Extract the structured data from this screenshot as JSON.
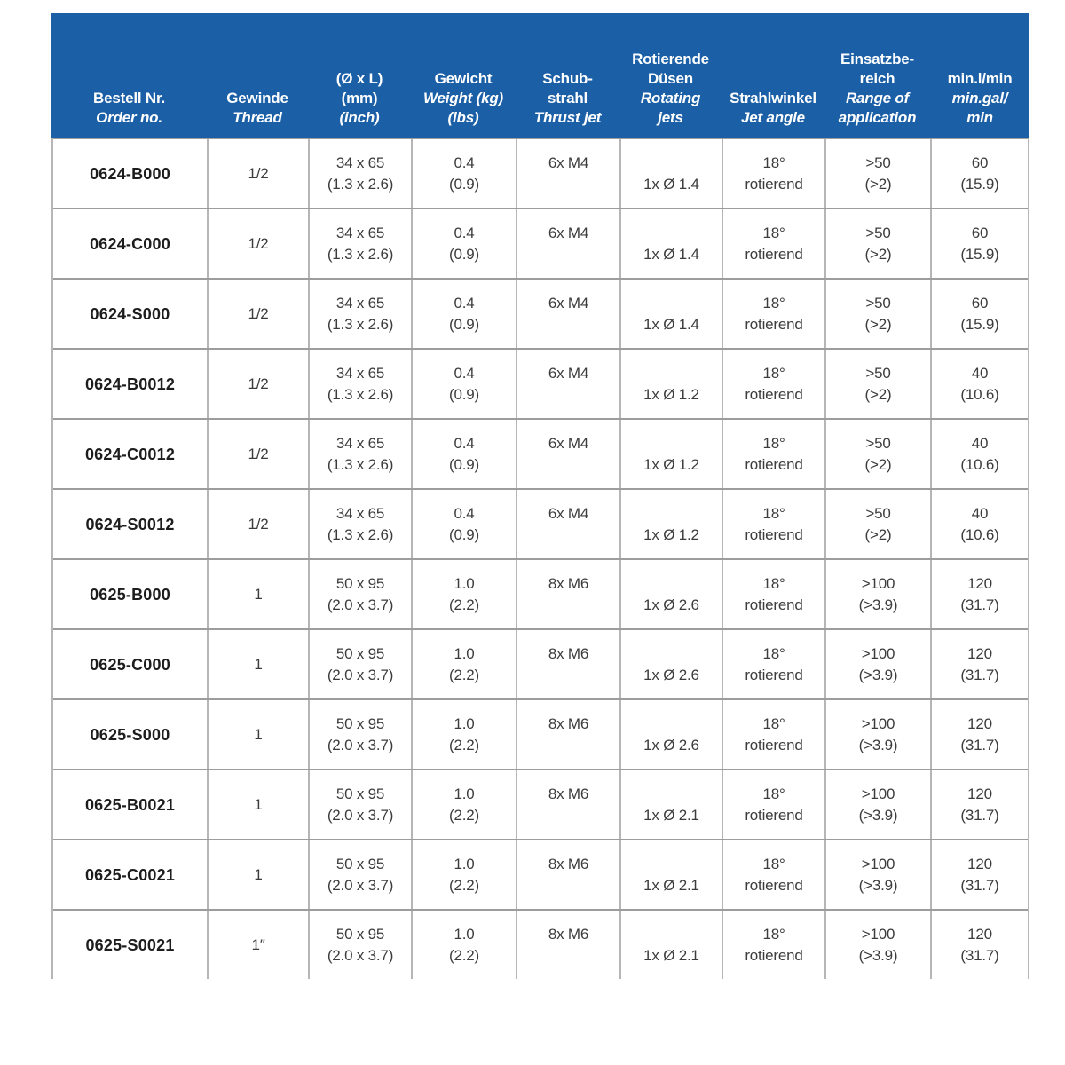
{
  "page": {
    "background": "#ffffff"
  },
  "colors": {
    "header_background": "#1b5fa6",
    "header_text": "#ffffff",
    "row_divider": "#9d9d9d",
    "column_divider": "#b6b6b6",
    "body_text": "#3c3c3c",
    "order_no_text": "#1d1d1d"
  },
  "table": {
    "header": {
      "columns": [
        {
          "id": "order_no",
          "lines": [
            "Bestell Nr.",
            "Order no."
          ]
        },
        {
          "id": "thread",
          "lines": [
            "Gewinde",
            "Thread"
          ]
        },
        {
          "id": "dimensions",
          "lines": [
            "(Ø x L)",
            "(mm)",
            "(inch)"
          ]
        },
        {
          "id": "weight",
          "lines": [
            "Gewicht",
            "Weight (kg)",
            "(lbs)"
          ]
        },
        {
          "id": "thrust_jet",
          "lines": [
            "Schub-",
            "strahl",
            "Thrust jet"
          ]
        },
        {
          "id": "rotating_jets",
          "lines": [
            "Rotierende",
            "Düsen",
            "Rotating",
            "jets"
          ]
        },
        {
          "id": "jet_angle",
          "lines": [
            "Strahlwinkel",
            "Jet angle"
          ]
        },
        {
          "id": "range",
          "lines": [
            "Einsatzbe-",
            "reich",
            "Range of",
            "application"
          ]
        },
        {
          "id": "min_flow",
          "lines": [
            "min.l/min",
            "min.gal/",
            "min"
          ]
        }
      ]
    },
    "rows": [
      {
        "order_no": "0624-B000",
        "thread": "1/2",
        "dims_mm": "34 x 65",
        "dims_inch": "(1.3 x 2.6)",
        "weight_kg": "0.4",
        "weight_lbs": "(0.9)",
        "thrust_jet": "6x M4",
        "rotating_jets": "1x Ø 1.4",
        "jet_angle_1": "18°",
        "jet_angle_2": "rotierend",
        "range_1": ">50",
        "range_2": "(>2)",
        "flow_1": "60",
        "flow_2": "(15.9)"
      },
      {
        "order_no": "0624-C000",
        "thread": "1/2",
        "dims_mm": "34 x 65",
        "dims_inch": "(1.3 x 2.6)",
        "weight_kg": "0.4",
        "weight_lbs": "(0.9)",
        "thrust_jet": "6x M4",
        "rotating_jets": "1x Ø 1.4",
        "jet_angle_1": "18°",
        "jet_angle_2": "rotierend",
        "range_1": ">50",
        "range_2": "(>2)",
        "flow_1": "60",
        "flow_2": "(15.9)"
      },
      {
        "order_no": "0624-S000",
        "thread": "1/2",
        "dims_mm": "34 x 65",
        "dims_inch": "(1.3 x 2.6)",
        "weight_kg": "0.4",
        "weight_lbs": "(0.9)",
        "thrust_jet": "6x M4",
        "rotating_jets": "1x Ø 1.4",
        "jet_angle_1": "18°",
        "jet_angle_2": "rotierend",
        "range_1": ">50",
        "range_2": "(>2)",
        "flow_1": "60",
        "flow_2": "(15.9)"
      },
      {
        "order_no": "0624-B0012",
        "thread": "1/2",
        "dims_mm": "34 x 65",
        "dims_inch": "(1.3 x 2.6)",
        "weight_kg": "0.4",
        "weight_lbs": "(0.9)",
        "thrust_jet": "6x M4",
        "rotating_jets": "1x Ø 1.2",
        "jet_angle_1": "18°",
        "jet_angle_2": "rotierend",
        "range_1": ">50",
        "range_2": "(>2)",
        "flow_1": "40",
        "flow_2": "(10.6)"
      },
      {
        "order_no": "0624-C0012",
        "thread": "1/2",
        "dims_mm": "34 x 65",
        "dims_inch": "(1.3 x 2.6)",
        "weight_kg": "0.4",
        "weight_lbs": "(0.9)",
        "thrust_jet": "6x M4",
        "rotating_jets": "1x Ø 1.2",
        "jet_angle_1": "18°",
        "jet_angle_2": "rotierend",
        "range_1": ">50",
        "range_2": "(>2)",
        "flow_1": "40",
        "flow_2": "(10.6)"
      },
      {
        "order_no": "0624-S0012",
        "thread": "1/2",
        "dims_mm": "34 x 65",
        "dims_inch": "(1.3 x 2.6)",
        "weight_kg": "0.4",
        "weight_lbs": "(0.9)",
        "thrust_jet": "6x M4",
        "rotating_jets": "1x Ø 1.2",
        "jet_angle_1": "18°",
        "jet_angle_2": "rotierend",
        "range_1": ">50",
        "range_2": "(>2)",
        "flow_1": "40",
        "flow_2": "(10.6)"
      },
      {
        "order_no": "0625-B000",
        "thread": "1",
        "dims_mm": "50 x 95",
        "dims_inch": "(2.0 x 3.7)",
        "weight_kg": "1.0",
        "weight_lbs": "(2.2)",
        "thrust_jet": "8x M6",
        "rotating_jets": "1x Ø 2.6",
        "jet_angle_1": "18°",
        "jet_angle_2": "rotierend",
        "range_1": ">100",
        "range_2": "(>3.9)",
        "flow_1": "120",
        "flow_2": "(31.7)"
      },
      {
        "order_no": "0625-C000",
        "thread": "1",
        "dims_mm": "50 x 95",
        "dims_inch": "(2.0 x 3.7)",
        "weight_kg": "1.0",
        "weight_lbs": "(2.2)",
        "thrust_jet": "8x M6",
        "rotating_jets": "1x Ø 2.6",
        "jet_angle_1": "18°",
        "jet_angle_2": "rotierend",
        "range_1": ">100",
        "range_2": "(>3.9)",
        "flow_1": "120",
        "flow_2": "(31.7)"
      },
      {
        "order_no": "0625-S000",
        "thread": "1",
        "dims_mm": "50 x 95",
        "dims_inch": "(2.0 x 3.7)",
        "weight_kg": "1.0",
        "weight_lbs": "(2.2)",
        "thrust_jet": "8x M6",
        "rotating_jets": "1x Ø 2.6",
        "jet_angle_1": "18°",
        "jet_angle_2": "rotierend",
        "range_1": ">100",
        "range_2": "(>3.9)",
        "flow_1": "120",
        "flow_2": "(31.7)"
      },
      {
        "order_no": "0625-B0021",
        "thread": "1",
        "dims_mm": "50 x 95",
        "dims_inch": "(2.0 x 3.7)",
        "weight_kg": "1.0",
        "weight_lbs": "(2.2)",
        "thrust_jet": "8x M6",
        "rotating_jets": "1x Ø 2.1",
        "jet_angle_1": "18°",
        "jet_angle_2": "rotierend",
        "range_1": ">100",
        "range_2": "(>3.9)",
        "flow_1": "120",
        "flow_2": "(31.7)"
      },
      {
        "order_no": "0625-C0021",
        "thread": "1",
        "dims_mm": "50 x 95",
        "dims_inch": "(2.0 x 3.7)",
        "weight_kg": "1.0",
        "weight_lbs": "(2.2)",
        "thrust_jet": "8x M6",
        "rotating_jets": "1x Ø 2.1",
        "jet_angle_1": "18°",
        "jet_angle_2": "rotierend",
        "range_1": ">100",
        "range_2": "(>3.9)",
        "flow_1": "120",
        "flow_2": "(31.7)"
      },
      {
        "order_no": "0625-S0021",
        "thread": "1″",
        "dims_mm": "50 x 95",
        "dims_inch": "(2.0 x 3.7)",
        "weight_kg": "1.0",
        "weight_lbs": "(2.2)",
        "thrust_jet": "8x M6",
        "rotating_jets": "1x Ø 2.1",
        "jet_angle_1": "18°",
        "jet_angle_2": "rotierend",
        "range_1": ">100",
        "range_2": "(>3.9)",
        "flow_1": "120",
        "flow_2": "(31.7)"
      }
    ]
  }
}
